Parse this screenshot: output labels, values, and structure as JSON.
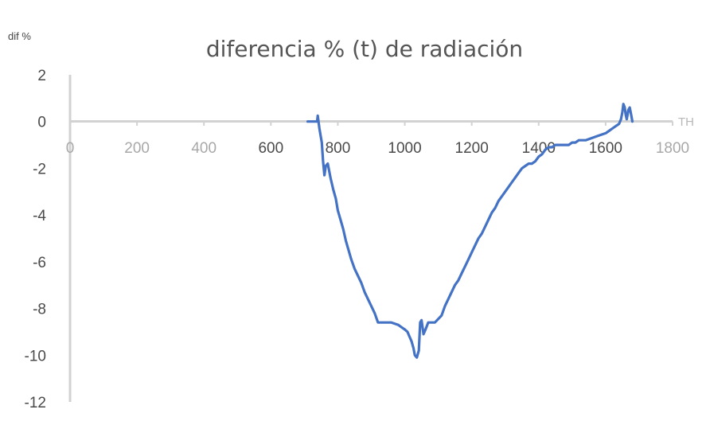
{
  "chart_data": {
    "type": "line",
    "title": "diferencia % (t) de radiación",
    "ylabel": "dif %",
    "xlabel": "TH",
    "xlim": [
      0,
      1800
    ],
    "ylim": [
      -12,
      2
    ],
    "x_ticks": [
      0,
      200,
      400,
      600,
      800,
      1000,
      1200,
      1400,
      1600,
      1800
    ],
    "y_ticks": [
      2,
      0,
      -2,
      -4,
      -6,
      -8,
      -10,
      -12
    ],
    "series_color": "#4472c4",
    "grid": false,
    "legend": "none",
    "series": [
      {
        "x": [
          710,
          738,
          740,
          745,
          752,
          756,
          760,
          764,
          770,
          778,
          786,
          794,
          800,
          808,
          816,
          824,
          832,
          840,
          850,
          860,
          870,
          880,
          890,
          900,
          910,
          920,
          930,
          940,
          960,
          980,
          1000,
          1008,
          1014,
          1020,
          1026,
          1030,
          1036,
          1042,
          1046,
          1050,
          1056,
          1062,
          1070,
          1078,
          1090,
          1110,
          1120,
          1130,
          1140,
          1150,
          1160,
          1170,
          1180,
          1190,
          1200,
          1210,
          1220,
          1230,
          1240,
          1250,
          1260,
          1270,
          1280,
          1290,
          1300,
          1310,
          1320,
          1330,
          1340,
          1350,
          1360,
          1370,
          1380,
          1390,
          1400,
          1410,
          1420,
          1430,
          1440,
          1450,
          1460,
          1470,
          1480,
          1490,
          1500,
          1510,
          1520,
          1540,
          1560,
          1580,
          1600,
          1610,
          1620,
          1630,
          1640,
          1646,
          1650,
          1653,
          1657,
          1660,
          1663,
          1668,
          1672,
          1676,
          1680
        ],
        "y": [
          0,
          0,
          0.25,
          -0.3,
          -0.9,
          -1.7,
          -2.3,
          -1.9,
          -1.8,
          -2.4,
          -2.9,
          -3.3,
          -3.8,
          -4.2,
          -4.6,
          -5.1,
          -5.5,
          -5.9,
          -6.3,
          -6.6,
          -6.9,
          -7.3,
          -7.6,
          -7.9,
          -8.2,
          -8.6,
          -8.6,
          -8.6,
          -8.6,
          -8.7,
          -8.9,
          -9.0,
          -9.2,
          -9.4,
          -9.7,
          -10.0,
          -10.1,
          -9.8,
          -8.6,
          -8.5,
          -9.1,
          -8.9,
          -8.6,
          -8.6,
          -8.6,
          -8.3,
          -7.9,
          -7.6,
          -7.3,
          -7.0,
          -6.8,
          -6.5,
          -6.2,
          -5.9,
          -5.6,
          -5.3,
          -5.0,
          -4.8,
          -4.5,
          -4.2,
          -3.9,
          -3.7,
          -3.4,
          -3.2,
          -3.0,
          -2.8,
          -2.6,
          -2.4,
          -2.2,
          -2.0,
          -1.9,
          -1.8,
          -1.8,
          -1.7,
          -1.5,
          -1.4,
          -1.2,
          -1.1,
          -1.1,
          -1.0,
          -1.0,
          -1.0,
          -1.0,
          -1.0,
          -0.9,
          -0.9,
          -0.8,
          -0.8,
          -0.7,
          -0.6,
          -0.5,
          -0.4,
          -0.3,
          -0.2,
          -0.1,
          0.1,
          0.4,
          0.75,
          0.6,
          0.3,
          0.1,
          0.5,
          0.6,
          0.3,
          0.0
        ]
      }
    ]
  }
}
